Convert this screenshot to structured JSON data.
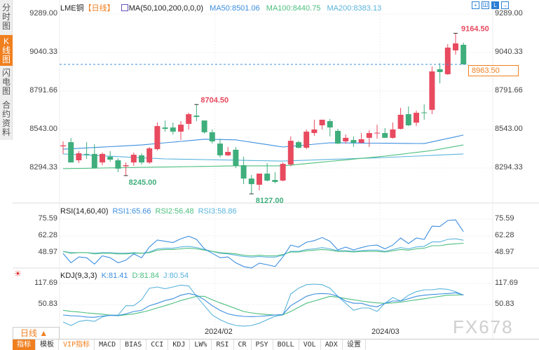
{
  "sidebar": {
    "tabs": [
      {
        "label": "分时图",
        "active": false
      },
      {
        "label": "K线图",
        "active": true
      },
      {
        "label": "闪电图",
        "active": false
      },
      {
        "label": "合约资料",
        "active": false
      }
    ]
  },
  "header": {
    "symbol": "LME铜",
    "period": "【日线】",
    "ma_label": "MA(50,100,200,0,0,0)",
    "ma50": "MA50:8501.06",
    "ma100": "MA100:8440.75",
    "ma200": "MA200:8383.13",
    "toolbar_icons": [
      "crosshair-icon",
      "layout-icon",
      "chart-type-icon",
      "expand-icon"
    ]
  },
  "colors": {
    "up": "#e84a5f",
    "down": "#3fae7c",
    "ma50": "#3d8fe0",
    "ma100": "#4cbf7f",
    "ma200": "#5ab4dc",
    "accent": "#f07f1e"
  },
  "price_axis": {
    "ticks": [
      "9289.00",
      "9040.33",
      "8791.66",
      "8543.00",
      "8294.33"
    ],
    "tick_values": [
      9289,
      9040.33,
      8791.66,
      8543,
      8294.33
    ]
  },
  "current_price": "8963.50",
  "annotations": {
    "high": "9164.50",
    "high2": "8704.50",
    "low1": "8245.00",
    "low2": "8127.00"
  },
  "chart_data": {
    "type": "candlestick",
    "ohlc": [
      [
        8434,
        8466,
        8385,
        8440
      ],
      [
        8461,
        8488,
        8330,
        8330
      ],
      [
        8344,
        8403,
        8326,
        8389
      ],
      [
        8385,
        8461,
        8353,
        8380
      ],
      [
        8385,
        8448,
        8290,
        8294
      ],
      [
        8330,
        8394,
        8312,
        8385
      ],
      [
        8367,
        8403,
        8335,
        8348
      ],
      [
        8344,
        8357,
        8267,
        8290
      ],
      [
        8305,
        8330,
        8245,
        8312
      ],
      [
        8330,
        8394,
        8308,
        8380
      ],
      [
        8376,
        8389,
        8317,
        8330
      ],
      [
        8330,
        8430,
        8321,
        8421
      ],
      [
        8416,
        8588,
        8407,
        8565
      ],
      [
        8556,
        8601,
        8529,
        8547
      ],
      [
        8556,
        8588,
        8511,
        8529
      ],
      [
        8529,
        8597,
        8475,
        8574
      ],
      [
        8579,
        8651,
        8543,
        8642
      ],
      [
        8633,
        8704.5,
        8597,
        8624
      ],
      [
        8601,
        8601,
        8516,
        8525
      ],
      [
        8525,
        8543,
        8452,
        8466
      ],
      [
        8452,
        8484,
        8362,
        8376
      ],
      [
        8376,
        8430,
        8371,
        8398
      ],
      [
        8412,
        8430,
        8294,
        8308
      ],
      [
        8312,
        8367,
        8190,
        8226
      ],
      [
        8226,
        8249,
        8127,
        8190
      ],
      [
        8186,
        8258,
        8150,
        8258
      ],
      [
        8258,
        8326,
        8208,
        8213
      ],
      [
        8217,
        8267,
        8195,
        8204
      ],
      [
        8213,
        8330,
        8208,
        8321
      ],
      [
        8317,
        8498,
        8305,
        8470
      ],
      [
        8461,
        8470,
        8421,
        8425
      ],
      [
        8425,
        8543,
        8416,
        8529
      ],
      [
        8520,
        8606,
        8502,
        8543
      ],
      [
        8570,
        8606,
        8543,
        8606
      ],
      [
        8597,
        8611,
        8498,
        8556
      ],
      [
        8534,
        8547,
        8448,
        8452
      ],
      [
        8466,
        8511,
        8452,
        8489
      ],
      [
        8475,
        8498,
        8430,
        8457
      ],
      [
        8457,
        8520,
        8452,
        8480
      ],
      [
        8489,
        8538,
        8430,
        8520
      ],
      [
        8518,
        8574,
        8484,
        8522
      ],
      [
        8520,
        8552,
        8489,
        8489
      ],
      [
        8489,
        8588,
        8484,
        8543
      ],
      [
        8547,
        8683,
        8543,
        8638
      ],
      [
        8642,
        8692,
        8565,
        8570
      ],
      [
        8587,
        8665,
        8565,
        8651
      ],
      [
        8653,
        8706,
        8606,
        8649
      ],
      [
        8670,
        8950,
        8642,
        8918
      ],
      [
        8932,
        8972,
        8841,
        8914
      ],
      [
        8900,
        9095,
        8896,
        9072
      ],
      [
        9054,
        9164.5,
        9027,
        9099
      ],
      [
        9090,
        9104,
        8963.5,
        8963.5
      ]
    ],
    "ma_keypoints": {
      "ma50": [
        [
          1,
          8416
        ],
        [
          11,
          8443
        ],
        [
          19,
          8480
        ],
        [
          23,
          8476
        ],
        [
          29,
          8430
        ],
        [
          35,
          8457
        ],
        [
          47,
          8452
        ],
        [
          52,
          8507
        ]
      ],
      "ma100": [
        [
          1,
          8290
        ],
        [
          23,
          8308
        ],
        [
          29,
          8308
        ],
        [
          42,
          8371
        ],
        [
          48,
          8407
        ],
        [
          52,
          8443
        ]
      ],
      "ma200": [
        [
          1,
          8385
        ],
        [
          14,
          8353
        ],
        [
          29,
          8339
        ],
        [
          42,
          8362
        ],
        [
          52,
          8385
        ]
      ]
    },
    "ylim": [
      8127,
      9289
    ],
    "x_tick_labels": [
      "2024/02",
      "2024/03"
    ],
    "x_tick_index": [
      20,
      41
    ],
    "rsi": {
      "label": "RSI(14,60,40)",
      "rsi1_label": "RSI1:65.66",
      "rsi2_label": "RSI2:56.48",
      "rsi3_label": "RSI3:58.86",
      "ticks": [
        "75.59",
        "62.28",
        "48.97"
      ],
      "tick_values": [
        75.59,
        62.28,
        48.97
      ],
      "rsi1": [
        48.4,
        41,
        45.6,
        45,
        40,
        46.5,
        45,
        41,
        43,
        48,
        45,
        53.5,
        59,
        58,
        57,
        60,
        62,
        59.5,
        52,
        48.5,
        45,
        45.6,
        41,
        38,
        36.8,
        40.7,
        39.5,
        38,
        45.6,
        55,
        53.4,
        57.3,
        58.5,
        61,
        58,
        51.2,
        53.4,
        51.2,
        53,
        54.5,
        55,
        52,
        55,
        60.6,
        56.2,
        60.6,
        59.5,
        70,
        69.7,
        74.5,
        75,
        65.66
      ],
      "rsi2": [
        50,
        48.5,
        49,
        49,
        48,
        48.5,
        48.5,
        48,
        48,
        48.5,
        48.5,
        49,
        51,
        51.5,
        51.5,
        52,
        52.5,
        52,
        51,
        50,
        49,
        48.5,
        48,
        47,
        46.5,
        47,
        46.5,
        46.5,
        47.5,
        49.5,
        49.5,
        50.5,
        51,
        51.5,
        51,
        50,
        50,
        49.5,
        50,
        50,
        50,
        49.5,
        50.5,
        51.5,
        51,
        52,
        52.5,
        54.5,
        54.5,
        55.5,
        56,
        56.48
      ],
      "rsi3": [
        50,
        49,
        49,
        49,
        48.5,
        49,
        49,
        48.5,
        48.5,
        49,
        48.5,
        49.5,
        52,
        52.5,
        52.5,
        53.5,
        54,
        53,
        51.5,
        50,
        48.5,
        48,
        47,
        46,
        45.5,
        46,
        45.5,
        45.5,
        47,
        50,
        50,
        51.5,
        52,
        53,
        52,
        50.5,
        50.5,
        50,
        50.5,
        51,
        51,
        50,
        51.5,
        53,
        52,
        53.5,
        54,
        57.5,
        57.5,
        59.5,
        60,
        58.86
      ]
    },
    "kdj": {
      "label": "KDJ(9,3,3)",
      "k_label": "K:81.41",
      "d_label": "D:81.84",
      "j_label": "J:80.54",
      "ticks": [
        "117.69",
        "50.83"
      ],
      "tick_values": [
        117.69,
        50.83
      ],
      "k": [
        17.4,
        15,
        14,
        11,
        10,
        14,
        16,
        15.9,
        21,
        28.5,
        32,
        47,
        54.5,
        63.5,
        69.4,
        80.5,
        85.8,
        80.5,
        65.7,
        47,
        32,
        21,
        15.9,
        13,
        12.2,
        13,
        15,
        17.4,
        19,
        47,
        62,
        76.8,
        84.3,
        85.8,
        84.3,
        76.8,
        62,
        54.8,
        54.8,
        47,
        43.4,
        54.5,
        62,
        62,
        69.4,
        76.8,
        80.5,
        82.8,
        84.3,
        85.8,
        88,
        81.41
      ],
      "d": [
        32.3,
        29,
        27,
        24,
        22,
        20,
        17,
        15,
        18,
        21,
        26,
        32,
        40,
        47,
        55,
        63.5,
        70,
        76.8,
        76.8,
        65.7,
        56,
        47,
        38,
        28.5,
        24,
        21,
        19,
        17.4,
        18,
        28.5,
        42,
        54.8,
        62,
        69.4,
        76.8,
        74,
        70,
        65.7,
        62,
        58.3,
        56,
        54.5,
        56,
        58.3,
        62,
        65.7,
        69,
        73,
        77,
        80.5,
        81,
        81.84
      ],
      "j": [
        -5,
        -16,
        -3.4,
        1,
        -3,
        11,
        17.4,
        17,
        47,
        47,
        65.7,
        102.8,
        106.5,
        101.3,
        106.5,
        112.5,
        110,
        76.8,
        47,
        17.4,
        2.5,
        -8.6,
        -16,
        -18,
        -16,
        -8.6,
        2.5,
        13.7,
        17.4,
        84.3,
        102.8,
        114,
        115.5,
        114,
        102.8,
        76.8,
        54.5,
        32.3,
        39.7,
        39.7,
        28.5,
        54.5,
        73,
        62,
        80.5,
        91.7,
        97.6,
        97.6,
        101.3,
        99,
        91.7,
        80.54
      ]
    }
  },
  "period_button": "日线 ▲",
  "bottom_tabs": [
    {
      "label": "指标",
      "active": true
    },
    {
      "label": "模板"
    },
    {
      "label": "VIP指标",
      "vip": true
    },
    {
      "label": "MACD"
    },
    {
      "label": "BIAS"
    },
    {
      "label": "CCI"
    },
    {
      "label": "KDJ"
    },
    {
      "label": "LW%"
    },
    {
      "label": "RSI"
    },
    {
      "label": "CR"
    },
    {
      "label": "PSY"
    },
    {
      "label": "BOLL"
    },
    {
      "label": "VOL"
    },
    {
      "label": "ADX"
    },
    {
      "label": "设置"
    }
  ],
  "watermark": "FX678"
}
